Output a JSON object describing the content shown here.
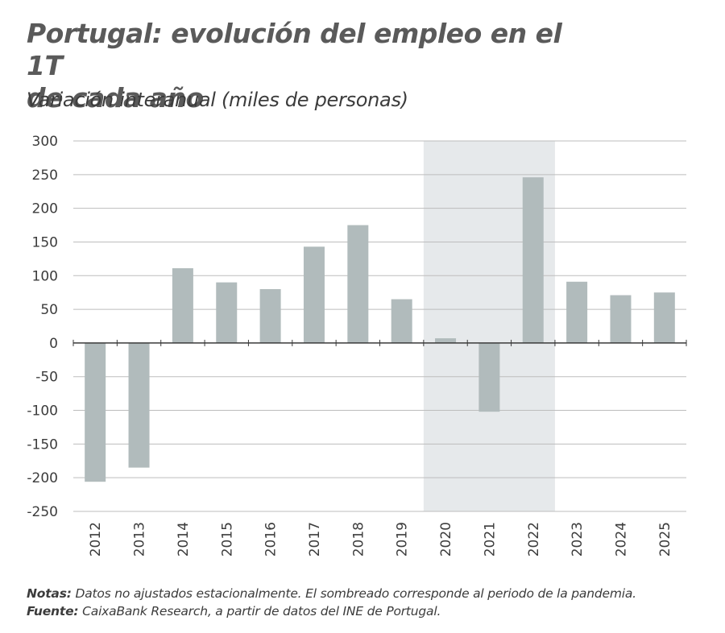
{
  "title_line1": "Portugal: evolución del empleo en el 1T",
  "title_line2": "de cada año",
  "subtitle": "Variación interanual (miles de personas)",
  "notes_label": "Notas:",
  "notes_text": "Datos no ajustados estacionalmente. El sombreado corresponde al periodo de la pandemia.",
  "source_label": "Fuente:",
  "source_text": "CaixaBank Research, a partir de datos del INE de Portugal.",
  "chart_data": {
    "type": "bar",
    "title": "Portugal: evolución del empleo en el 1T de cada año",
    "subtitle": "Variación interanual (miles de personas)",
    "categories": [
      "2012",
      "2013",
      "2014",
      "2015",
      "2016",
      "2017",
      "2018",
      "2019",
      "2020",
      "2021",
      "2022",
      "2023",
      "2024",
      "2025"
    ],
    "values": [
      -206,
      -185,
      111,
      90,
      80,
      143,
      175,
      65,
      7,
      -102,
      246,
      91,
      71,
      75
    ],
    "ylim": [
      -250,
      300
    ],
    "yticks": [
      300,
      250,
      200,
      150,
      100,
      50,
      0,
      -50,
      -100,
      -150,
      -200,
      -250
    ],
    "grid": true,
    "shaded_categories": [
      "2020",
      "2021",
      "2022"
    ],
    "colors": {
      "bar": "#b1bbbc",
      "shade": "#e6e9eb",
      "grid": "#bdbdbd",
      "axis": "#3a3a3a"
    }
  }
}
